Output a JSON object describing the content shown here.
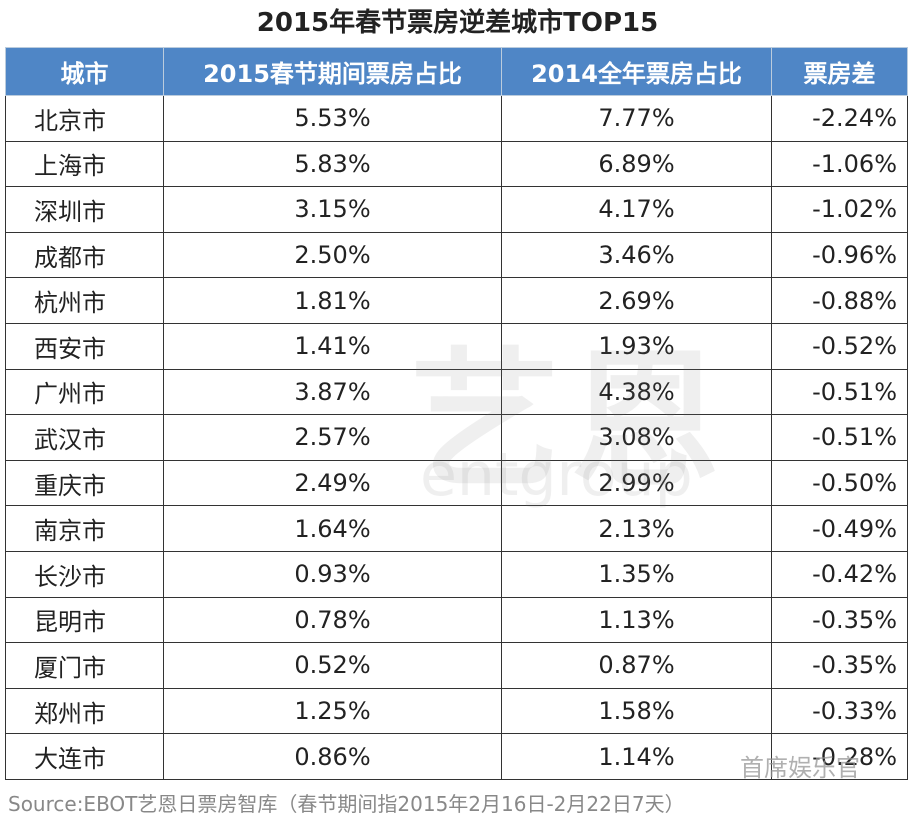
{
  "title": "2015年春节票房逆差城市TOP15",
  "table": {
    "header": [
      "城市",
      "2015春节期间票房占比",
      "2014全年票房占比",
      "票房差"
    ],
    "rows": [
      [
        "北京市",
        "5.53%",
        "7.77%",
        "-2.24%"
      ],
      [
        "上海市",
        "5.83%",
        "6.89%",
        "-1.06%"
      ],
      [
        "深圳市",
        "3.15%",
        "4.17%",
        "-1.02%"
      ],
      [
        "成都市",
        "2.50%",
        "3.46%",
        "-0.96%"
      ],
      [
        "杭州市",
        "1.81%",
        "2.69%",
        "-0.88%"
      ],
      [
        "西安市",
        "1.41%",
        "1.93%",
        "-0.52%"
      ],
      [
        "广州市",
        "3.87%",
        "4.38%",
        "-0.51%"
      ],
      [
        "武汉市",
        "2.57%",
        "3.08%",
        "-0.51%"
      ],
      [
        "重庆市",
        "2.49%",
        "2.99%",
        "-0.50%"
      ],
      [
        "南京市",
        "1.64%",
        "2.13%",
        "-0.49%"
      ],
      [
        "长沙市",
        "0.93%",
        "1.35%",
        "-0.42%"
      ],
      [
        "昆明市",
        "0.78%",
        "1.13%",
        "-0.35%"
      ],
      [
        "厦门市",
        "0.52%",
        "0.87%",
        "-0.35%"
      ],
      [
        "郑州市",
        "1.25%",
        "1.58%",
        "-0.33%"
      ],
      [
        "大连市",
        "0.86%",
        "1.14%",
        "-0.28%"
      ]
    ]
  },
  "watermarks": [
    "艺恩",
    "entgroup",
    "首席娱乐官"
  ],
  "source": "Source:EBOT艺恩日票房智库（春节期间指2015年2月16日-2月22日7天）"
}
